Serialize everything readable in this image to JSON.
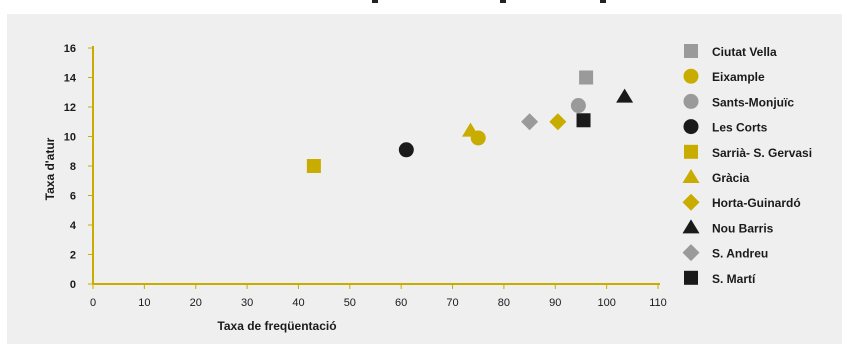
{
  "chart_data": {
    "type": "scatter",
    "title": "",
    "xlabel": "Taxa de freqüentació",
    "ylabel": "Taxa d'atur",
    "xlim": [
      0,
      110
    ],
    "ylim": [
      0,
      16
    ],
    "x_ticks": [
      0,
      10,
      20,
      30,
      40,
      50,
      60,
      70,
      80,
      90,
      100,
      110
    ],
    "y_ticks": [
      0,
      2,
      4,
      6,
      8,
      10,
      12,
      14,
      16
    ],
    "grid": false,
    "legend_position": "right",
    "series": [
      {
        "name": "Ciutat Vella",
        "marker": "square",
        "color": "#9a9a9a",
        "x": 96,
        "y": 14
      },
      {
        "name": "Eixample",
        "marker": "circle",
        "color": "#c8ac00",
        "x": 75,
        "y": 9.9
      },
      {
        "name": "Sants-Monjuïc",
        "marker": "circle",
        "color": "#9a9a9a",
        "x": 94.5,
        "y": 12.1
      },
      {
        "name": "Les Corts",
        "marker": "circle",
        "color": "#1a1a1a",
        "x": 61,
        "y": 9.1
      },
      {
        "name": "Sarrià- S. Gervasi",
        "marker": "square",
        "color": "#c8ac00",
        "x": 43,
        "y": 8
      },
      {
        "name": "Gràcia",
        "marker": "triangle",
        "color": "#c8ac00",
        "x": 73.5,
        "y": 10.4
      },
      {
        "name": "Horta-Guinardó",
        "marker": "diamond",
        "color": "#c8ac00",
        "x": 90.5,
        "y": 11
      },
      {
        "name": "Nou Barris",
        "marker": "triangle",
        "color": "#1a1a1a",
        "x": 103.5,
        "y": 12.7
      },
      {
        "name": "S. Andreu",
        "marker": "diamond",
        "color": "#9a9a9a",
        "x": 85,
        "y": 11
      },
      {
        "name": "S. Martí",
        "marker": "square",
        "color": "#1a1a1a",
        "x": 95.5,
        "y": 11.1
      }
    ]
  },
  "colors": {
    "axis": "#c8ac00",
    "panel_background": "#efefef",
    "text": "#1a1a1a"
  }
}
